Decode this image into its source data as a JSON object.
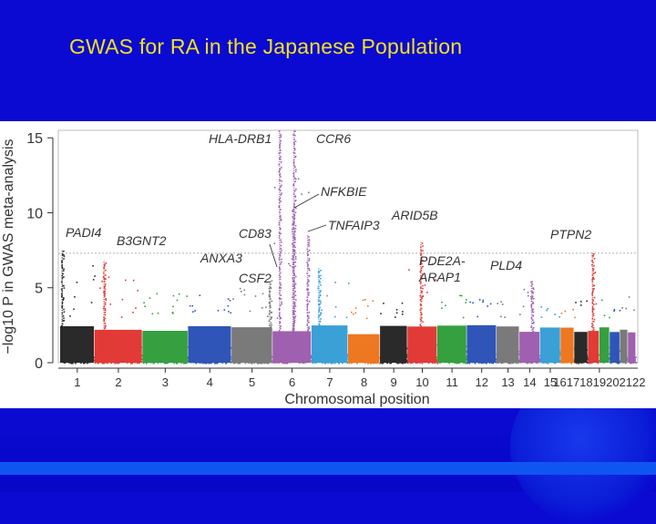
{
  "slide": {
    "title": "GWAS  for RA in the Japanese Population",
    "colors": {
      "background": "#0a0ad2",
      "title": "#f3e21c",
      "band": "#0f55f2"
    }
  },
  "chart_data": {
    "type": "scatter",
    "subtype": "manhattan",
    "xlabel": "Chromosomal position",
    "ylabel": "−log10 P in GWAS meta-analysis",
    "ylim": [
      0,
      15.5
    ],
    "yticks": [
      0,
      5,
      10,
      15
    ],
    "threshold": 7.3,
    "chromosomes": [
      {
        "label": "1",
        "color": "#2a2a2a",
        "max": 7.5
      },
      {
        "label": "2",
        "color": "#e23a36",
        "max": 6.8
      },
      {
        "label": "3",
        "color": "#35a040",
        "max": 5.2
      },
      {
        "label": "4",
        "color": "#2f55b8",
        "max": 5.0
      },
      {
        "label": "5",
        "color": "#7a7a7a",
        "max": 5.5
      },
      {
        "label": "6",
        "color": "#a060b0",
        "max": 15.5
      },
      {
        "label": "7",
        "color": "#3aa0d6",
        "max": 6.3
      },
      {
        "label": "8",
        "color": "#ee7722",
        "max": 4.6
      },
      {
        "label": "9",
        "color": "#2a2a2a",
        "max": 4.3
      },
      {
        "label": "10",
        "color": "#e23a36",
        "max": 8.0
      },
      {
        "label": "11",
        "color": "#35a040",
        "max": 5.0
      },
      {
        "label": "12",
        "color": "#2f55b8",
        "max": 5.0
      },
      {
        "label": "13",
        "color": "#7a7a7a",
        "max": 4.6
      },
      {
        "label": "14",
        "color": "#a060b0",
        "max": 5.5
      },
      {
        "label": "15",
        "color": "#3aa0d6",
        "max": 4.2
      },
      {
        "label": "16",
        "color": "#ee7722",
        "max": 4.4
      },
      {
        "label": "17",
        "color": "#2a2a2a",
        "max": 4.6
      },
      {
        "label": "18",
        "color": "#e23a36",
        "max": 7.4
      },
      {
        "label": "19",
        "color": "#35a040",
        "max": 4.6
      },
      {
        "label": "20",
        "color": "#2f55b8",
        "max": 4.0
      },
      {
        "label": "21",
        "color": "#7a7a7a",
        "max": 4.2
      },
      {
        "label": "22",
        "color": "#a060b0",
        "max": 5.5
      }
    ],
    "xtick_labels": [
      {
        "text": "1",
        "chrom": 1
      },
      {
        "text": "2",
        "chrom": 2
      },
      {
        "text": "3",
        "chrom": 3
      },
      {
        "text": "4",
        "chrom": 4
      },
      {
        "text": "5",
        "chrom": 5
      },
      {
        "text": "6",
        "chrom": 6
      },
      {
        "text": "7",
        "chrom": 7
      },
      {
        "text": "8",
        "chrom": 8
      },
      {
        "text": "9",
        "chrom": 9
      },
      {
        "text": "10",
        "chrom": 10
      },
      {
        "text": "11",
        "chrom": 11
      },
      {
        "text": "12",
        "chrom": 12
      },
      {
        "text": "13",
        "chrom": 13
      },
      {
        "text": "14",
        "chrom": 14
      },
      {
        "text": "15",
        "chrom": 15
      },
      {
        "text": "16171819202122",
        "chrom": 19
      }
    ],
    "peaks": [
      {
        "chrom": 1,
        "pos": 0.06,
        "value": 7.5
      },
      {
        "chrom": 2,
        "pos": 0.2,
        "value": 6.8
      },
      {
        "chrom": 5,
        "pos": 0.93,
        "value": 5.5
      },
      {
        "chrom": 6,
        "pos": 0.18,
        "value": 15.5
      },
      {
        "chrom": 6,
        "pos": 0.55,
        "value": 15.5
      },
      {
        "chrom": 6,
        "pos": 0.52,
        "value": 10.3
      },
      {
        "chrom": 6,
        "pos": 0.9,
        "value": 8.5
      },
      {
        "chrom": 7,
        "pos": 0.2,
        "value": 6.3
      },
      {
        "chrom": 10,
        "pos": 0.45,
        "value": 8.0
      },
      {
        "chrom": 14,
        "pos": 0.6,
        "value": 5.5
      },
      {
        "chrom": 18,
        "pos": 0.4,
        "value": 7.4
      }
    ],
    "annotations": [
      {
        "text": "PADI4",
        "chrom": 1
      },
      {
        "text": "B3GNT2",
        "chrom": 2
      },
      {
        "text": "ANXA3",
        "chrom": 4
      },
      {
        "text": "CD83",
        "chrom": 5
      },
      {
        "text": "CSF2",
        "chrom": 5
      },
      {
        "text": "HLA-DRB1",
        "chrom": 6
      },
      {
        "text": "CCR6",
        "chrom": 6
      },
      {
        "text": "NFKBIE",
        "chrom": 6
      },
      {
        "text": "TNFAIP3",
        "chrom": 6
      },
      {
        "text": "ARID5B",
        "chrom": 10
      },
      {
        "text": "PDE2A-",
        "chrom": 11
      },
      {
        "text": "ARAP1",
        "chrom": 11
      },
      {
        "text": "PLD4",
        "chrom": 14
      },
      {
        "text": "PTPN2",
        "chrom": 18
      }
    ]
  }
}
